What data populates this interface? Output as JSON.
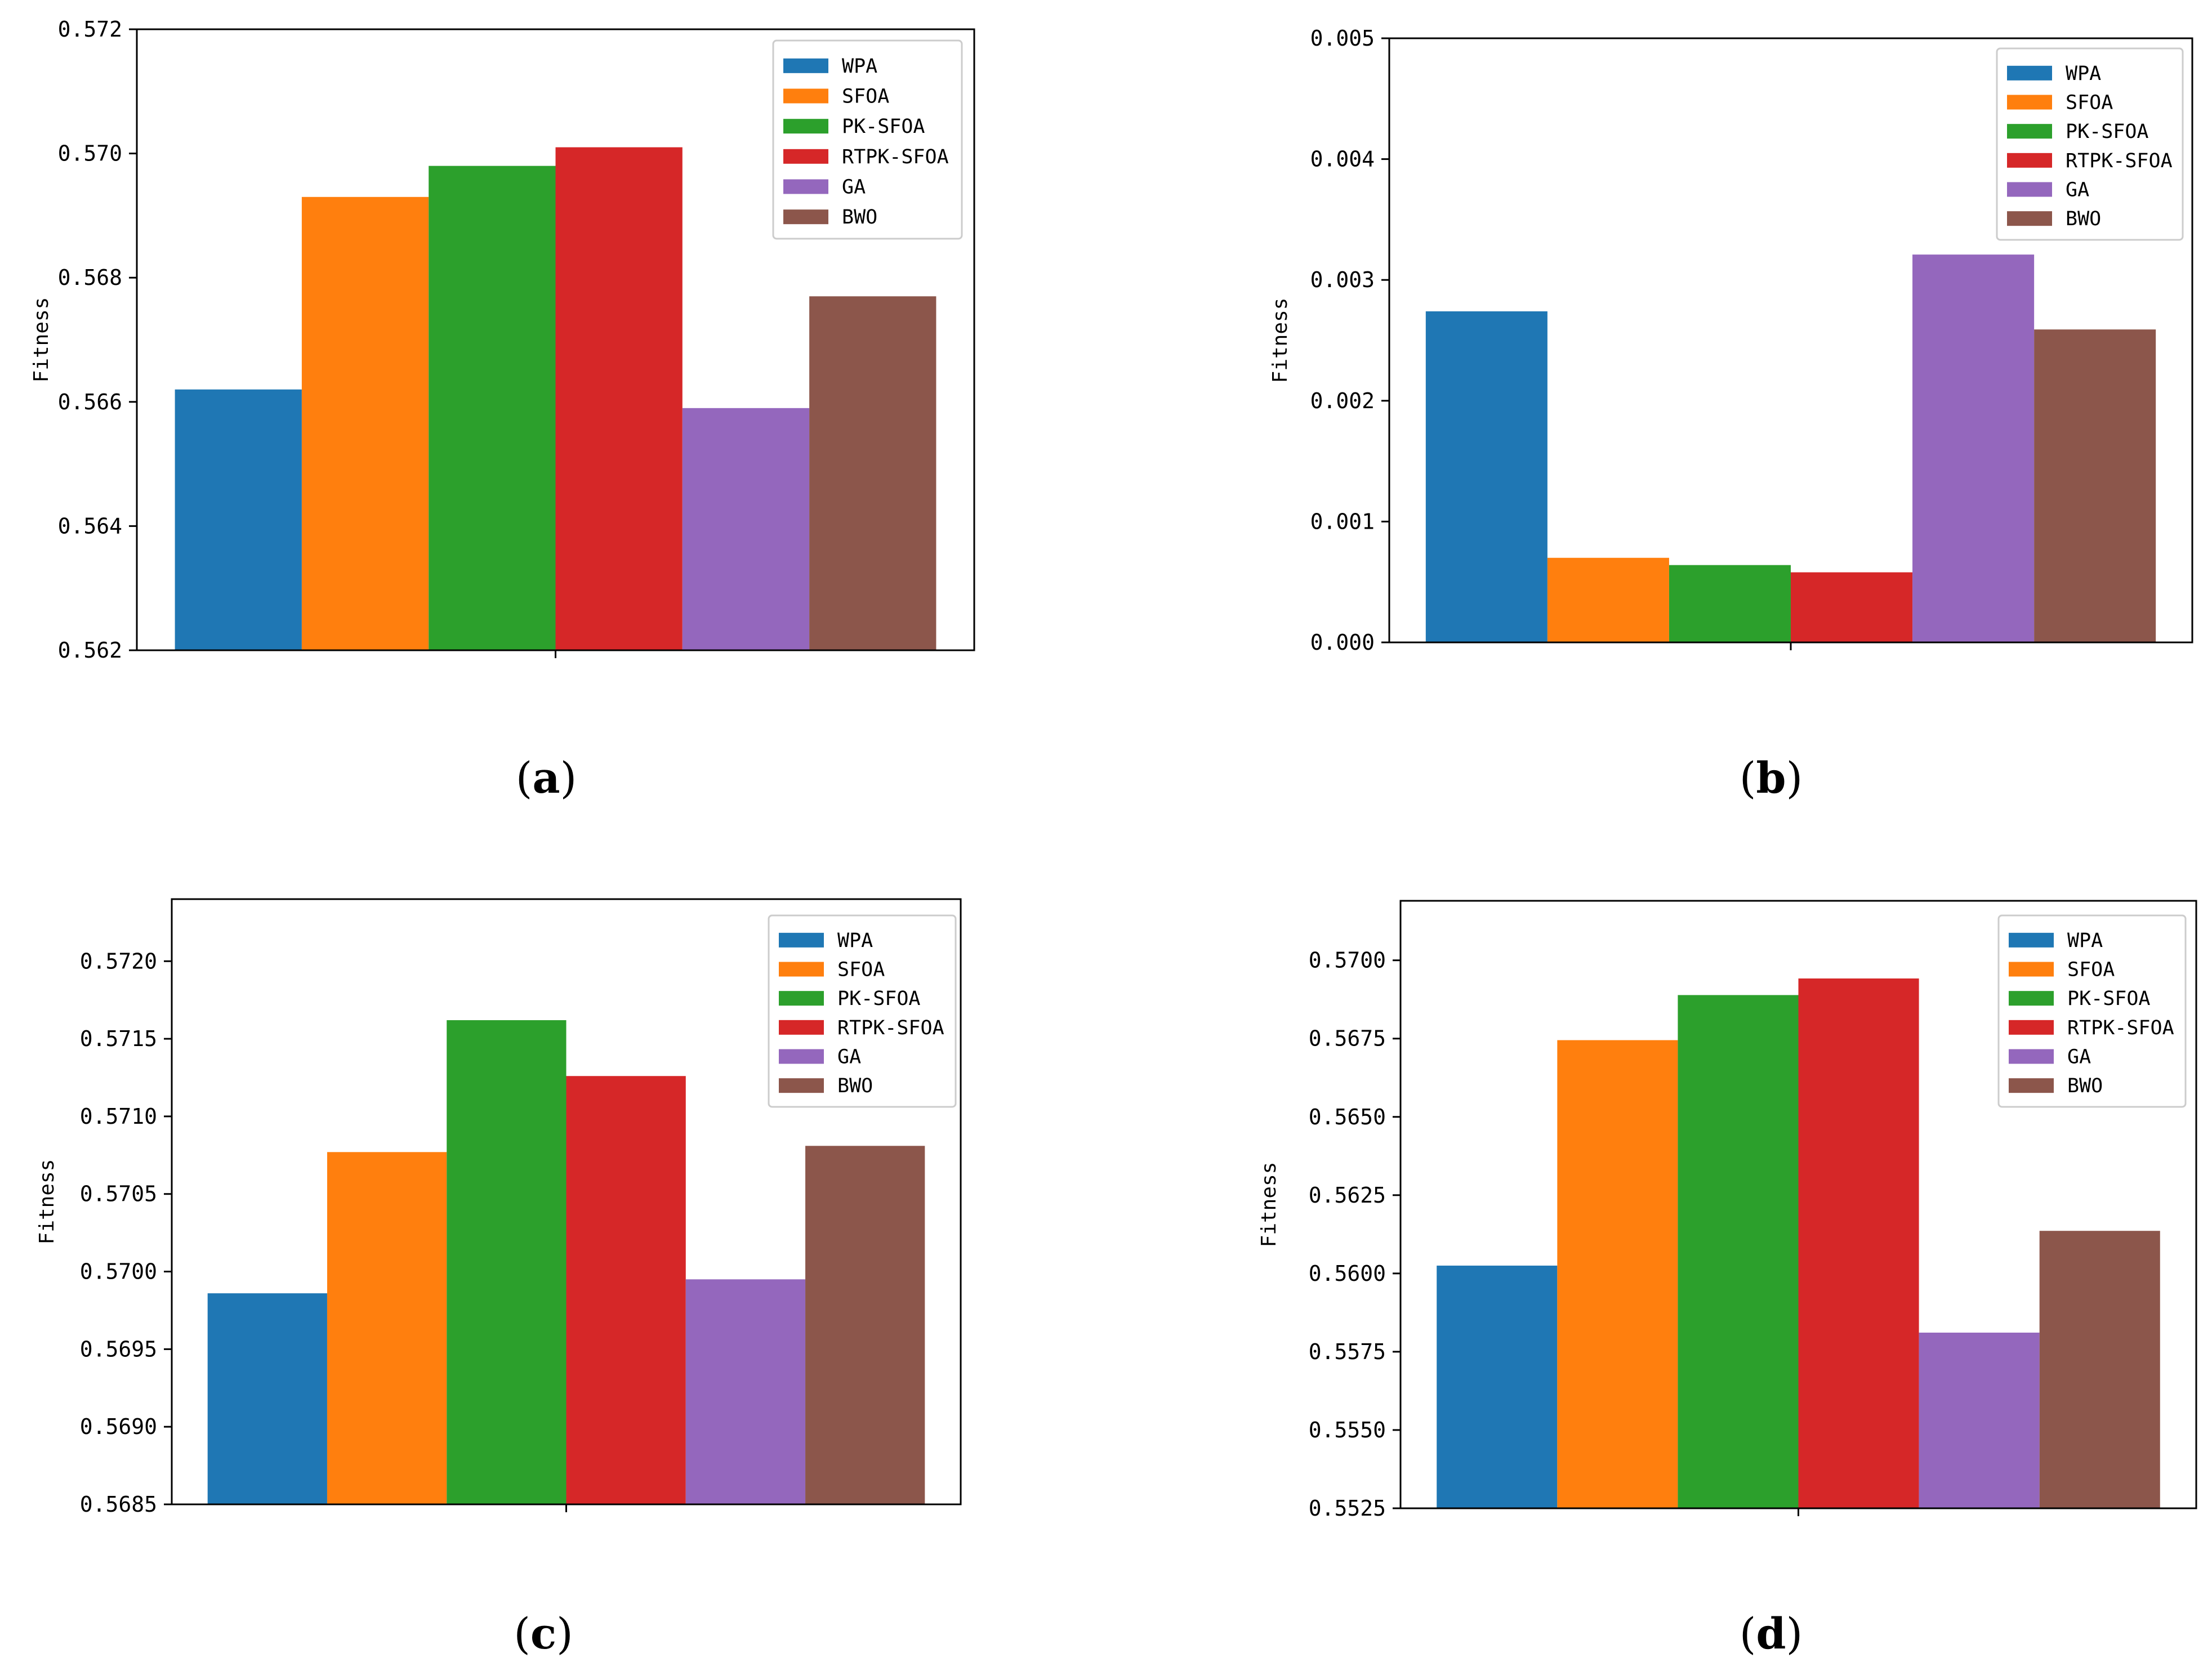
{
  "legend_entries": [
    {
      "name": "WPA",
      "color": "#1f77b4"
    },
    {
      "name": "SFOA",
      "color": "#ff7f0e"
    },
    {
      "name": "PK-SFOA",
      "color": "#2ca02c"
    },
    {
      "name": "RTPK-SFOA",
      "color": "#d62728"
    },
    {
      "name": "GA",
      "color": "#9467bd"
    },
    {
      "name": "BWO",
      "color": "#8c564b"
    }
  ],
  "chart_data": [
    {
      "type": "bar",
      "caption": {
        "open": "(",
        "letter": "a",
        "close": ")"
      },
      "xlabel": "",
      "ylabel": "Fitness",
      "ylim": [
        0.562,
        0.572
      ],
      "yticks": [
        "0.562",
        "0.564",
        "0.566",
        "0.568",
        "0.570",
        "0.572"
      ],
      "legend_position": "upper-right",
      "series": [
        {
          "name": "WPA",
          "values": [
            0.5662
          ]
        },
        {
          "name": "SFOA",
          "values": [
            0.5693
          ]
        },
        {
          "name": "PK-SFOA",
          "values": [
            0.5698
          ]
        },
        {
          "name": "RTPK-SFOA",
          "values": [
            0.5701
          ]
        },
        {
          "name": "GA",
          "values": [
            0.5659
          ]
        },
        {
          "name": "BWO",
          "values": [
            0.5677
          ]
        }
      ]
    },
    {
      "type": "bar",
      "caption": {
        "open": "(",
        "letter": "b",
        "close": ")"
      },
      "xlabel": "",
      "ylabel": "Fitness",
      "ylim": [
        0.0,
        0.005
      ],
      "yticks": [
        "0.000",
        "0.001",
        "0.002",
        "0.003",
        "0.004",
        "0.005"
      ],
      "legend_position": "upper-right",
      "series": [
        {
          "name": "WPA",
          "values": [
            0.00274
          ]
        },
        {
          "name": "SFOA",
          "values": [
            0.0007
          ]
        },
        {
          "name": "PK-SFOA",
          "values": [
            0.00064
          ]
        },
        {
          "name": "RTPK-SFOA",
          "values": [
            0.00058
          ]
        },
        {
          "name": "GA",
          "values": [
            0.00321
          ]
        },
        {
          "name": "BWO",
          "values": [
            0.00259
          ]
        }
      ]
    },
    {
      "type": "bar",
      "caption": {
        "open": "(",
        "letter": "c",
        "close": ")"
      },
      "xlabel": "",
      "ylabel": "Fitness",
      "ylim": [
        0.5685,
        0.5724
      ],
      "yticks": [
        "0.5685",
        "0.5690",
        "0.5695",
        "0.5700",
        "0.5705",
        "0.5710",
        "0.5715",
        "0.5720"
      ],
      "legend_position": "upper-right",
      "series": [
        {
          "name": "WPA",
          "values": [
            0.56986
          ]
        },
        {
          "name": "SFOA",
          "values": [
            0.57077
          ]
        },
        {
          "name": "PK-SFOA",
          "values": [
            0.57162
          ]
        },
        {
          "name": "RTPK-SFOA",
          "values": [
            0.57126
          ]
        },
        {
          "name": "GA",
          "values": [
            0.56995
          ]
        },
        {
          "name": "BWO",
          "values": [
            0.57081
          ]
        }
      ]
    },
    {
      "type": "bar",
      "caption": {
        "open": "(",
        "letter": "d",
        "close": ")"
      },
      "xlabel": "",
      "ylabel": "Fitness",
      "ylim": [
        0.5525,
        0.5719
      ],
      "yticks": [
        "0.5525",
        "0.5550",
        "0.5575",
        "0.5600",
        "0.5625",
        "0.5650",
        "0.5675",
        "0.5700"
      ],
      "legend_position": "upper-right",
      "series": [
        {
          "name": "WPA",
          "values": [
            0.56025
          ]
        },
        {
          "name": "SFOA",
          "values": [
            0.56745
          ]
        },
        {
          "name": "PK-SFOA",
          "values": [
            0.56889
          ]
        },
        {
          "name": "RTPK-SFOA",
          "values": [
            0.56942
          ]
        },
        {
          "name": "GA",
          "values": [
            0.55811
          ]
        },
        {
          "name": "BWO",
          "values": [
            0.56136
          ]
        }
      ]
    }
  ]
}
